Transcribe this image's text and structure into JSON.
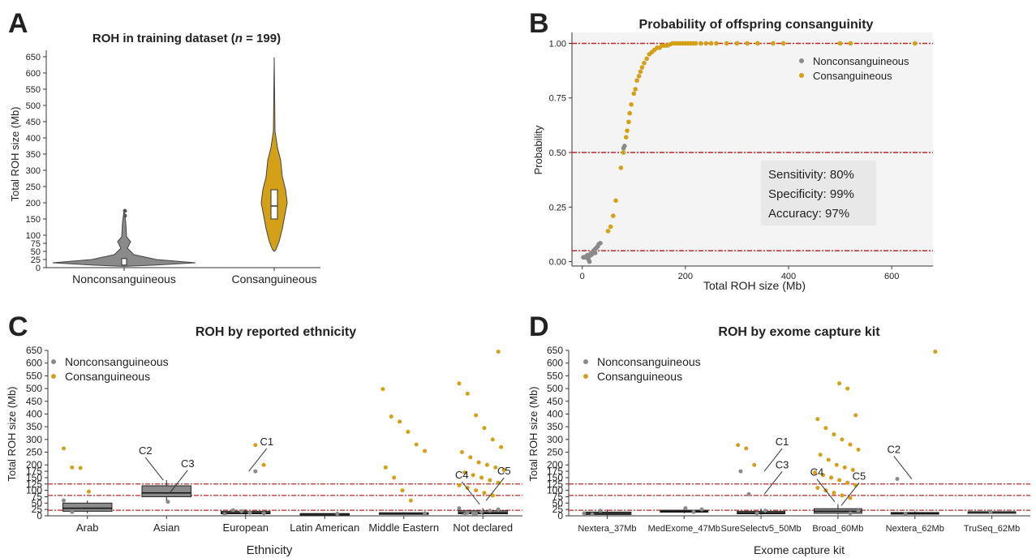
{
  "colors": {
    "nonconsanguineous": "#8a8a8a",
    "consanguineous": "#d4a017",
    "threshold": "#cc2222",
    "box": "#555555"
  },
  "chart_data": [
    {
      "panel": "A",
      "type": "violin",
      "title": "ROH in training dataset (",
      "title_n": "n",
      "title_n_value": " = 199)",
      "ylabel": "Total ROH size (Mb)",
      "ylim": [
        0,
        650
      ],
      "yticks": [
        "0",
        "25",
        "50",
        "75",
        "100",
        "150",
        "200",
        "250",
        "300",
        "350",
        "400",
        "450",
        "500",
        "550",
        "600",
        "650"
      ],
      "yticks_values": [
        0,
        25,
        50,
        75,
        100,
        150,
        200,
        250,
        300,
        350,
        400,
        450,
        500,
        550,
        600,
        650
      ],
      "categories": [
        "Nonconsanguineous",
        "Consanguineous"
      ],
      "medians": [
        15,
        190
      ],
      "ranges": [
        [
          5,
          175
        ],
        [
          50,
          648
        ]
      ],
      "grid": false
    },
    {
      "panel": "B",
      "type": "scatter",
      "title": "Probability of offspring consanguinity",
      "xlabel": "Total ROH size (Mb)",
      "ylabel": "Probability",
      "xlim": [
        -20,
        680
      ],
      "ylim": [
        -0.02,
        1.05
      ],
      "xticks": [
        "0",
        "200",
        "400",
        "600"
      ],
      "yticks": [
        "0.00",
        "0.25",
        "0.50",
        "0.75",
        "1.00"
      ],
      "thresholds": [
        0.05,
        0.5,
        1.0
      ],
      "legend": [
        "Nonconsanguineous",
        "Consanguineous"
      ],
      "legend_position": "top-right",
      "annotation": [
        "Sensitivity: 80%",
        "Specificity: 99%",
        "Accuracy: 97%"
      ],
      "series": [
        {
          "name": "Nonconsanguineous",
          "points": [
            [
              2,
              0.02
            ],
            [
              4,
              0.02
            ],
            [
              6,
              0.02
            ],
            [
              8,
              0.025
            ],
            [
              9,
              0.02
            ],
            [
              10,
              0.03
            ],
            [
              11,
              0.02
            ],
            [
              12,
              0.03
            ],
            [
              13,
              0.025
            ],
            [
              14,
              0.03
            ],
            [
              15,
              0.03
            ],
            [
              16,
              0.035
            ],
            [
              17,
              0.03
            ],
            [
              18,
              0.04
            ],
            [
              19,
              0.035
            ],
            [
              20,
              0.04
            ],
            [
              21,
              0.045
            ],
            [
              22,
              0.05
            ],
            [
              23,
              0.05
            ],
            [
              24,
              0.055
            ],
            [
              26,
              0.06
            ],
            [
              28,
              0.065
            ],
            [
              30,
              0.07
            ],
            [
              32,
              0.08
            ],
            [
              12,
              0.01
            ],
            [
              14,
              0.0
            ],
            [
              25,
              0.04
            ],
            [
              35,
              0.085
            ],
            [
              80,
              0.52
            ],
            [
              82,
              0.53
            ]
          ]
        },
        {
          "name": "Consanguineous",
          "points": [
            [
              50,
              0.14
            ],
            [
              55,
              0.16
            ],
            [
              60,
              0.21
            ],
            [
              65,
              0.28
            ],
            [
              75,
              0.43
            ],
            [
              80,
              0.5
            ],
            [
              85,
              0.57
            ],
            [
              87,
              0.6
            ],
            [
              90,
              0.64
            ],
            [
              92,
              0.68
            ],
            [
              95,
              0.72
            ],
            [
              100,
              0.77
            ],
            [
              103,
              0.79
            ],
            [
              106,
              0.83
            ],
            [
              110,
              0.85
            ],
            [
              113,
              0.87
            ],
            [
              116,
              0.89
            ],
            [
              120,
              0.91
            ],
            [
              125,
              0.93
            ],
            [
              130,
              0.95
            ],
            [
              135,
              0.96
            ],
            [
              140,
              0.97
            ],
            [
              145,
              0.98
            ],
            [
              150,
              0.98
            ],
            [
              155,
              0.99
            ],
            [
              160,
              0.99
            ],
            [
              165,
              0.99
            ],
            [
              170,
              0.995
            ],
            [
              175,
              1.0
            ],
            [
              180,
              1.0
            ],
            [
              185,
              1.0
            ],
            [
              190,
              1.0
            ],
            [
              195,
              1.0
            ],
            [
              200,
              1.0
            ],
            [
              205,
              1.0
            ],
            [
              210,
              1.0
            ],
            [
              215,
              1.0
            ],
            [
              220,
              1.0
            ],
            [
              230,
              1.0
            ],
            [
              240,
              1.0
            ],
            [
              250,
              1.0
            ],
            [
              260,
              1.0
            ],
            [
              280,
              1.0
            ],
            [
              300,
              1.0
            ],
            [
              320,
              1.0
            ],
            [
              340,
              1.0
            ],
            [
              370,
              1.0
            ],
            [
              390,
              1.0
            ],
            [
              500,
              1.0
            ],
            [
              520,
              1.0
            ],
            [
              645,
              1.0
            ]
          ]
        }
      ],
      "grid": false
    },
    {
      "panel": "C",
      "type": "box+strip",
      "title": "ROH by reported ethnicity",
      "xlabel": "Ethnicity",
      "ylabel": "Total ROH size (Mb)",
      "ylim": [
        0,
        650
      ],
      "yticks": [
        "0",
        "25",
        "50",
        "75",
        "100",
        "125",
        "150",
        "175",
        "200",
        "250",
        "300",
        "350",
        "400",
        "450",
        "500",
        "550",
        "600",
        "650"
      ],
      "categories": [
        "Arab",
        "Asian",
        "European",
        "Latin American",
        "Middle Eastern",
        "Not declared"
      ],
      "thresholds": [
        22,
        80,
        125
      ],
      "legend": [
        "Nonconsanguineous",
        "Consanguineous"
      ],
      "legend_position": "top-left",
      "boxes": [
        [
          10,
          18,
          30,
          50,
          60
        ],
        [
          55,
          75,
          90,
          118,
          140
        ],
        [
          2,
          8,
          12,
          18,
          25
        ],
        [
          3,
          5,
          7,
          9,
          10
        ],
        [
          6,
          8,
          10,
          12,
          14
        ],
        [
          3,
          8,
          12,
          20,
          30
        ]
      ],
      "labels": [
        {
          "text": "C1",
          "category": "European",
          "value": 175
        },
        {
          "text": "C2",
          "category": "Asian",
          "value": 140
        },
        {
          "text": "C3",
          "category": "Asian",
          "value": 90
        },
        {
          "text": "C4",
          "category": "Not declared",
          "value": 45
        },
        {
          "text": "C5",
          "category": "Not declared",
          "value": 60
        }
      ],
      "series": [
        {
          "name": "Nonconsanguineous",
          "points": [
            [
              "Arab",
              60
            ],
            [
              "Arab",
              15
            ],
            [
              "Arab",
              40
            ],
            [
              "Asian",
              55
            ],
            [
              "European",
              175
            ],
            [
              "European",
              10
            ],
            [
              "European",
              5
            ],
            [
              "European",
              22
            ],
            [
              "European",
              18
            ],
            [
              "European",
              12
            ],
            [
              "Latin American",
              8
            ],
            [
              "Middle Eastern",
              10
            ],
            [
              "Not declared",
              5
            ],
            [
              "Not declared",
              10
            ],
            [
              "Not declared",
              15
            ],
            [
              "Not declared",
              20
            ],
            [
              "Not declared",
              25
            ],
            [
              "Not declared",
              30
            ],
            [
              "Not declared",
              12
            ],
            [
              "Not declared",
              8
            ]
          ]
        },
        {
          "name": "Consanguineous",
          "points": [
            [
              "Arab",
              265
            ],
            [
              "Arab",
              190
            ],
            [
              "Arab",
              188
            ],
            [
              "Arab",
              95
            ],
            [
              "European",
              278
            ],
            [
              "European",
              200
            ],
            [
              "Middle Eastern",
              498
            ],
            [
              "Middle Eastern",
              390
            ],
            [
              "Middle Eastern",
              370
            ],
            [
              "Middle Eastern",
              330
            ],
            [
              "Middle Eastern",
              280
            ],
            [
              "Middle Eastern",
              255
            ],
            [
              "Middle Eastern",
              190
            ],
            [
              "Middle Eastern",
              150
            ],
            [
              "Middle Eastern",
              100
            ],
            [
              "Middle Eastern",
              60
            ],
            [
              "Not declared",
              645
            ],
            [
              "Not declared",
              520
            ],
            [
              "Not declared",
              480
            ],
            [
              "Not declared",
              395
            ],
            [
              "Not declared",
              345
            ],
            [
              "Not declared",
              300
            ],
            [
              "Not declared",
              270
            ],
            [
              "Not declared",
              250
            ],
            [
              "Not declared",
              230
            ],
            [
              "Not declared",
              210
            ],
            [
              "Not declared",
              200
            ],
            [
              "Not declared",
              190
            ],
            [
              "Not declared",
              180
            ],
            [
              "Not declared",
              170
            ],
            [
              "Not declared",
              160
            ],
            [
              "Not declared",
              150
            ],
            [
              "Not declared",
              140
            ],
            [
              "Not declared",
              130
            ],
            [
              "Not declared",
              120
            ],
            [
              "Not declared",
              110
            ],
            [
              "Not declared",
              100
            ],
            [
              "Not declared",
              90
            ],
            [
              "Not declared",
              80
            ]
          ]
        }
      ],
      "grid": false
    },
    {
      "panel": "D",
      "type": "box+strip",
      "title": "ROH by exome capture kit",
      "xlabel": "Exome capture kit",
      "ylabel": "Total ROH size (Mb)",
      "ylim": [
        0,
        650
      ],
      "yticks": [
        "0",
        "25",
        "50",
        "75",
        "100",
        "125",
        "150",
        "175",
        "200",
        "250",
        "300",
        "350",
        "400",
        "450",
        "500",
        "550",
        "600",
        "650"
      ],
      "categories": [
        "Nextera_37Mb",
        "MedExome_47Mb",
        "SureSelectv5_50Mb",
        "Broad_60Mb",
        "Nextera_62Mb",
        "TruSeq_62Mb"
      ],
      "thresholds": [
        22,
        80,
        125
      ],
      "legend": [
        "Nonconsanguineous",
        "Consanguineous"
      ],
      "legend_position": "top-left",
      "boxes": [
        [
          2,
          5,
          10,
          15,
          25
        ],
        [
          10,
          14,
          18,
          22,
          30
        ],
        [
          4,
          8,
          12,
          18,
          28
        ],
        [
          5,
          10,
          18,
          28,
          45
        ],
        [
          4,
          7,
          10,
          13,
          18
        ],
        [
          12,
          14,
          15,
          16,
          18
        ]
      ],
      "labels": [
        {
          "text": "C1",
          "category": "SureSelectv5_50Mb",
          "value": 175
        },
        {
          "text": "C2",
          "category": "Nextera_62Mb",
          "value": 145
        },
        {
          "text": "C3",
          "category": "SureSelectv5_50Mb",
          "value": 85
        },
        {
          "text": "C4",
          "category": "Broad_60Mb",
          "value": 55
        },
        {
          "text": "C5",
          "category": "Broad_60Mb",
          "value": 40
        }
      ],
      "series": [
        {
          "name": "Nonconsanguineous",
          "points": [
            [
              "Nextera_37Mb",
              10
            ],
            [
              "Nextera_37Mb",
              5
            ],
            [
              "Nextera_37Mb",
              20
            ],
            [
              "MedExome_47Mb",
              30
            ],
            [
              "MedExome_47Mb",
              15
            ],
            [
              "MedExome_47Mb",
              25
            ],
            [
              "SureSelectv5_50Mb",
              175
            ],
            [
              "SureSelectv5_50Mb",
              85
            ],
            [
              "SureSelectv5_50Mb",
              10
            ],
            [
              "SureSelectv5_50Mb",
              20
            ],
            [
              "Broad_60Mb",
              10
            ],
            [
              "Broad_60Mb",
              20
            ],
            [
              "Nextera_62Mb",
              145
            ],
            [
              "Nextera_62Mb",
              8
            ],
            [
              "TruSeq_62Mb",
              15
            ]
          ]
        },
        {
          "name": "Consanguineous",
          "points": [
            [
              "SureSelectv5_50Mb",
              278
            ],
            [
              "SureSelectv5_50Mb",
              265
            ],
            [
              "SureSelectv5_50Mb",
              200
            ],
            [
              "Broad_60Mb",
              520
            ],
            [
              "Broad_60Mb",
              500
            ],
            [
              "Broad_60Mb",
              395
            ],
            [
              "Broad_60Mb",
              380
            ],
            [
              "Broad_60Mb",
              345
            ],
            [
              "Broad_60Mb",
              320
            ],
            [
              "Broad_60Mb",
              300
            ],
            [
              "Broad_60Mb",
              280
            ],
            [
              "Broad_60Mb",
              260
            ],
            [
              "Broad_60Mb",
              240
            ],
            [
              "Broad_60Mb",
              220
            ],
            [
              "Broad_60Mb",
              200
            ],
            [
              "Broad_60Mb",
              190
            ],
            [
              "Broad_60Mb",
              180
            ],
            [
              "Broad_60Mb",
              170
            ],
            [
              "Broad_60Mb",
              160
            ],
            [
              "Broad_60Mb",
              150
            ],
            [
              "Broad_60Mb",
              140
            ],
            [
              "Broad_60Mb",
              130
            ],
            [
              "Broad_60Mb",
              120
            ],
            [
              "Broad_60Mb",
              110
            ],
            [
              "Broad_60Mb",
              100
            ],
            [
              "Broad_60Mb",
              90
            ],
            [
              "Broad_60Mb",
              80
            ],
            [
              "Broad_60Mb",
              70
            ],
            [
              "Nextera_62Mb",
              645
            ]
          ]
        }
      ],
      "grid": false
    }
  ],
  "panel_letters": [
    "A",
    "B",
    "C",
    "D"
  ]
}
